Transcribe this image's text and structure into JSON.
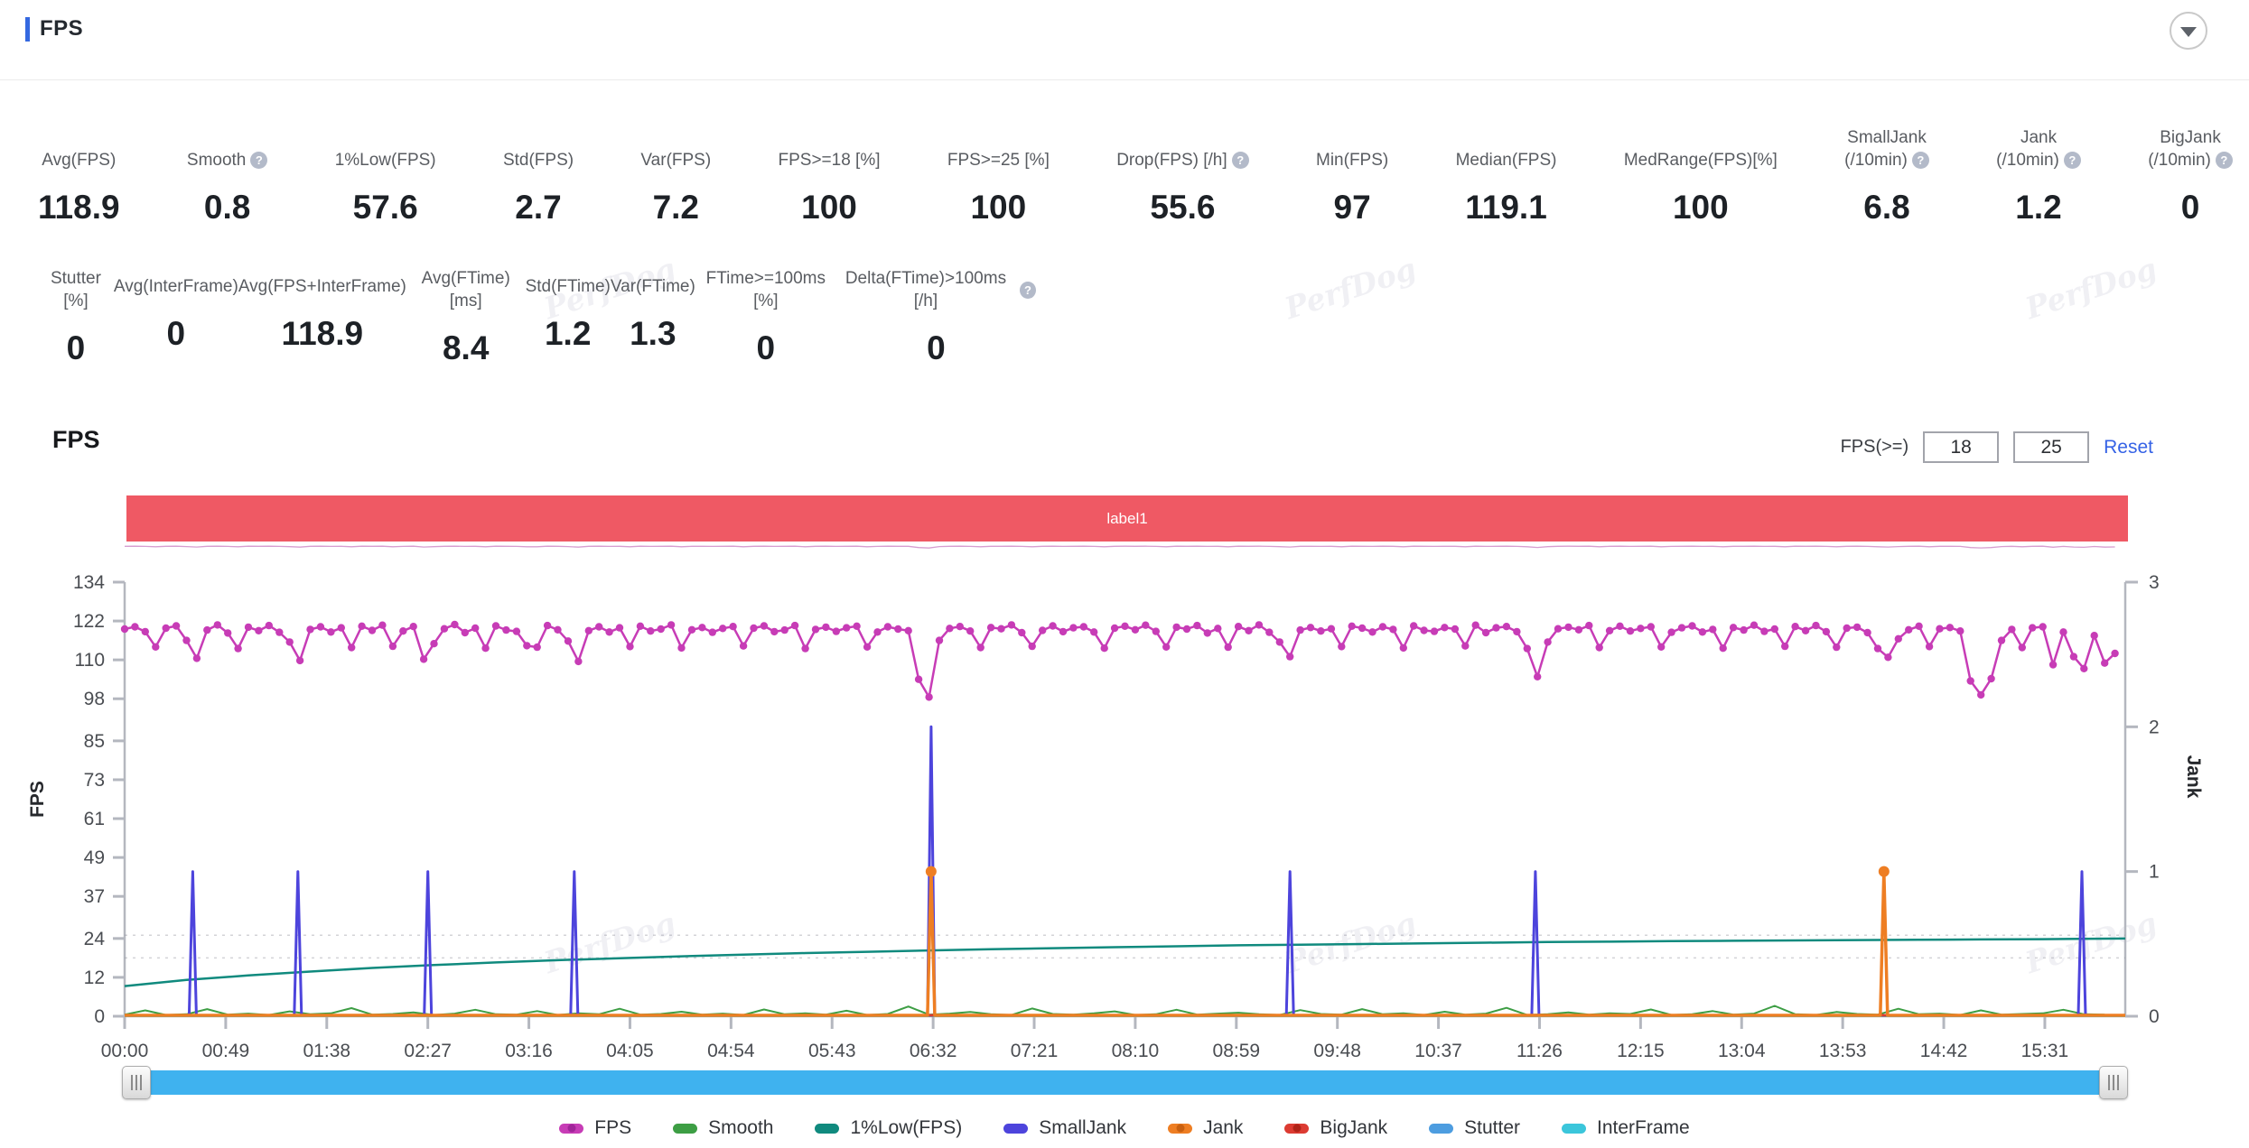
{
  "header": {
    "title": "FPS"
  },
  "watermark": "PerfDog",
  "stats_row1": [
    {
      "label": "Avg(FPS)",
      "value": "118.9"
    },
    {
      "label": "Smooth",
      "help": true,
      "value": "0.8"
    },
    {
      "label": "1%Low(FPS)",
      "value": "57.6"
    },
    {
      "label": "Std(FPS)",
      "value": "2.7"
    },
    {
      "label": "Var(FPS)",
      "value": "7.2"
    },
    {
      "label": "FPS>=18 [%]",
      "value": "100"
    },
    {
      "label": "FPS>=25 [%]",
      "value": "100"
    },
    {
      "label": "Drop(FPS) [/h]",
      "help": true,
      "value": "55.6"
    },
    {
      "label": "Min(FPS)",
      "value": "97"
    },
    {
      "label": "Median(FPS)",
      "value": "119.1"
    },
    {
      "label": "MedRange(FPS)[%]",
      "value": "100"
    },
    {
      "label": "SmallJank",
      "label2": "(/10min)",
      "help": true,
      "value": "6.8"
    },
    {
      "label": "Jank",
      "label2": "(/10min)",
      "help": true,
      "value": "1.2"
    },
    {
      "label": "BigJank",
      "label2": "(/10min)",
      "help": true,
      "value": "0"
    }
  ],
  "stats_row2": [
    {
      "label": "Stutter [%]",
      "value": "0"
    },
    {
      "label": "Avg(InterFrame)",
      "value": "0"
    },
    {
      "label": "Avg(FPS+InterFrame)",
      "value": "118.9"
    },
    {
      "label": "Avg(FTime) [ms]",
      "value": "8.4"
    },
    {
      "label": "Std(FTime)",
      "value": "1.2"
    },
    {
      "label": "Var(FTime)",
      "value": "1.3"
    },
    {
      "label": "FTime>=100ms [%]",
      "value": "0"
    },
    {
      "label": "Delta(FTime)>100ms [/h]",
      "help": true,
      "value": "0"
    }
  ],
  "chart_section": {
    "heading": "FPS",
    "filter_label": "FPS(>=)",
    "threshold1": "18",
    "threshold2": "25",
    "reset_label": "Reset",
    "banner_label": "label1"
  },
  "chart_data": {
    "type": "line",
    "title": "FPS",
    "x_axis": {
      "tick_labels": [
        "00:00",
        "00:49",
        "01:38",
        "02:27",
        "03:16",
        "04:05",
        "04:54",
        "05:43",
        "06:32",
        "07:21",
        "08:10",
        "08:59",
        "09:48",
        "10:37",
        "11:26",
        "12:15",
        "13:04",
        "13:53",
        "14:42",
        "15:31"
      ],
      "tick_step_seconds": 49,
      "t_max": 970
    },
    "y_left": {
      "label": "FPS",
      "ticks": [
        0,
        12,
        24,
        37,
        49,
        61,
        73,
        85,
        98,
        110,
        122,
        134
      ],
      "max": 134
    },
    "y_right": {
      "label": "Jank",
      "ticks": [
        0,
        1,
        2,
        3
      ],
      "max": 3
    },
    "threshold_lines_fps": [
      18,
      25
    ],
    "series": {
      "fps": {
        "name": "FPS",
        "color": "#C73CB6",
        "axis": "left",
        "t0": 0,
        "dt": 5,
        "values": [
          119.5,
          120.2,
          118.7,
          114.0,
          119.8,
          120.5,
          116.0,
          110.5,
          119.2,
          120.8,
          118.3,
          113.5,
          120.1,
          119.0,
          120.6,
          118.5,
          115.5,
          109.8,
          119.4,
          120.2,
          118.6,
          119.9,
          113.8,
          120.4,
          119.1,
          120.7,
          114.2,
          118.9,
          120.3,
          110.2,
          115.0,
          119.6,
          120.9,
          118.4,
          119.8,
          113.6,
          120.5,
          119.2,
          118.8,
          114.4,
          113.9,
          120.6,
          119.3,
          115.8,
          109.5,
          119.0,
          120.2,
          118.6,
          119.9,
          114.1,
          120.4,
          118.9,
          119.5,
          120.8,
          113.7,
          119.3,
          120.0,
          118.5,
          119.7,
          120.3,
          114.3,
          119.8,
          120.5,
          118.7,
          119.2,
          120.6,
          113.5,
          119.4,
          120.1,
          118.8,
          119.9,
          120.4,
          114.0,
          118.6,
          120.2,
          119.5,
          119.0,
          104.0,
          98.5,
          116.0,
          119.7,
          120.3,
          118.9,
          113.8,
          120.0,
          119.6,
          120.8,
          118.4,
          114.2,
          119.1,
          120.5,
          118.7,
          119.9,
          120.2,
          118.6,
          113.6,
          119.8,
          120.4,
          119.3,
          120.7,
          118.8,
          114.0,
          120.1,
          119.5,
          120.6,
          118.3,
          119.7,
          113.9,
          120.3,
          119.0,
          120.8,
          118.5,
          115.5,
          111.0,
          119.2,
          120.0,
          118.9,
          119.6,
          114.1,
          120.4,
          119.8,
          118.6,
          120.2,
          119.4,
          113.7,
          120.5,
          119.1,
          118.8,
          120.0,
          119.5,
          114.3,
          120.7,
          118.4,
          119.9,
          120.3,
          118.7,
          113.5,
          104.8,
          115.5,
          119.6,
          120.1,
          119.3,
          120.6,
          113.8,
          119.0,
          120.4,
          118.9,
          119.7,
          120.2,
          114.0,
          118.5,
          119.9,
          120.5,
          118.6,
          119.4,
          113.6,
          120.0,
          119.2,
          120.7,
          118.8,
          119.5,
          114.2,
          120.3,
          119.0,
          120.6,
          118.7,
          113.9,
          119.8,
          120.1,
          118.4,
          113.5,
          110.8,
          116.5,
          119.3,
          120.4,
          114.1,
          119.6,
          120.0,
          118.9,
          103.5,
          99.2,
          104.2,
          116.0,
          119.4,
          113.8,
          119.9,
          120.2,
          108.5,
          118.6,
          111.0,
          107.3,
          117.5,
          109.0,
          112.0
        ]
      },
      "smooth": {
        "name": "Smooth",
        "color": "#3D9E44",
        "axis": "left",
        "t0": 0,
        "dt": 10,
        "values": [
          0.5,
          1.8,
          0.4,
          0.6,
          2.2,
          0.5,
          0.8,
          0.4,
          1.5,
          0.6,
          0.9,
          2.5,
          0.5,
          0.7,
          1.2,
          0.4,
          0.8,
          2.0,
          0.6,
          0.5,
          1.6,
          0.4,
          0.9,
          0.6,
          2.3,
          0.5,
          0.7,
          1.4,
          0.5,
          0.8,
          0.4,
          2.1,
          0.6,
          0.9,
          0.5,
          1.7,
          0.4,
          0.7,
          3.0,
          0.5,
          0.8,
          1.3,
          0.6,
          0.4,
          2.4,
          0.7,
          0.5,
          0.9,
          1.5,
          0.4,
          0.6,
          2.0,
          0.5,
          0.8,
          1.1,
          0.6,
          0.4,
          1.9,
          0.7,
          0.5,
          2.2,
          0.6,
          0.9,
          0.4,
          1.4,
          0.5,
          0.8,
          2.6,
          0.4,
          0.6,
          1.2,
          0.5,
          0.9,
          0.7,
          2.1,
          0.4,
          0.6,
          1.6,
          0.5,
          0.8,
          3.2,
          0.6,
          0.4,
          1.3,
          0.7,
          0.5,
          2.3,
          0.6,
          0.8,
          0.4,
          1.8,
          0.5,
          0.7,
          0.9,
          2.0,
          0.6,
          0.5
        ]
      },
      "low1pct": {
        "name": "1%Low(FPS)",
        "color": "#108A7E",
        "axis": "left",
        "points": [
          [
            0,
            9.3
          ],
          [
            30,
            11.2
          ],
          [
            60,
            12.6
          ],
          [
            90,
            13.8
          ],
          [
            120,
            14.9
          ],
          [
            150,
            15.8
          ],
          [
            180,
            16.6
          ],
          [
            210,
            17.3
          ],
          [
            240,
            17.9
          ],
          [
            270,
            18.5
          ],
          [
            300,
            19.0
          ],
          [
            330,
            19.5
          ],
          [
            360,
            19.9
          ],
          [
            390,
            20.3
          ],
          [
            420,
            20.7
          ],
          [
            450,
            21.0
          ],
          [
            480,
            21.3
          ],
          [
            510,
            21.6
          ],
          [
            540,
            21.9
          ],
          [
            570,
            22.1
          ],
          [
            600,
            22.3
          ],
          [
            630,
            22.5
          ],
          [
            660,
            22.7
          ],
          [
            690,
            22.9
          ],
          [
            720,
            23.0
          ],
          [
            750,
            23.2
          ],
          [
            780,
            23.3
          ],
          [
            810,
            23.4
          ],
          [
            840,
            23.5
          ],
          [
            870,
            23.6
          ],
          [
            900,
            23.7
          ],
          [
            930,
            23.8
          ],
          [
            970,
            24.0
          ]
        ]
      },
      "smalljank": {
        "name": "SmallJank",
        "color": "#4D44DC",
        "axis": "right",
        "spikes": [
          [
            33,
            1
          ],
          [
            84,
            1
          ],
          [
            147,
            1
          ],
          [
            218,
            1
          ],
          [
            391,
            2
          ],
          [
            565,
            1
          ],
          [
            684,
            1
          ],
          [
            949,
            1
          ]
        ]
      },
      "jank": {
        "name": "Jank",
        "color": "#EE7E23",
        "axis": "right",
        "marker": true,
        "spikes": [
          [
            391,
            1
          ],
          [
            853,
            1
          ]
        ]
      },
      "bigjank": {
        "name": "BigJank",
        "color": "#DC3B32",
        "axis": "right",
        "marker": true,
        "spikes": []
      },
      "stutter": {
        "name": "Stutter",
        "color": "#4D9DE0",
        "axis": "right",
        "flat": 0
      },
      "interframe": {
        "name": "InterFrame",
        "color": "#3BC6DB",
        "axis": "left",
        "flat": 0
      }
    },
    "legend": [
      {
        "label": "FPS",
        "color": "#C73CB6",
        "dot_color": "#A1249A"
      },
      {
        "label": "Smooth",
        "color": "#3D9E44"
      },
      {
        "label": "1%Low(FPS)",
        "color": "#108A7E"
      },
      {
        "label": "SmallJank",
        "color": "#4D44DC"
      },
      {
        "label": "Jank",
        "color": "#EE7E23",
        "dot_color": "#C96010"
      },
      {
        "label": "BigJank",
        "color": "#DC3B32",
        "dot_color": "#B02318"
      },
      {
        "label": "Stutter",
        "color": "#4D9DE0"
      },
      {
        "label": "InterFrame",
        "color": "#3BC6DB"
      }
    ]
  }
}
